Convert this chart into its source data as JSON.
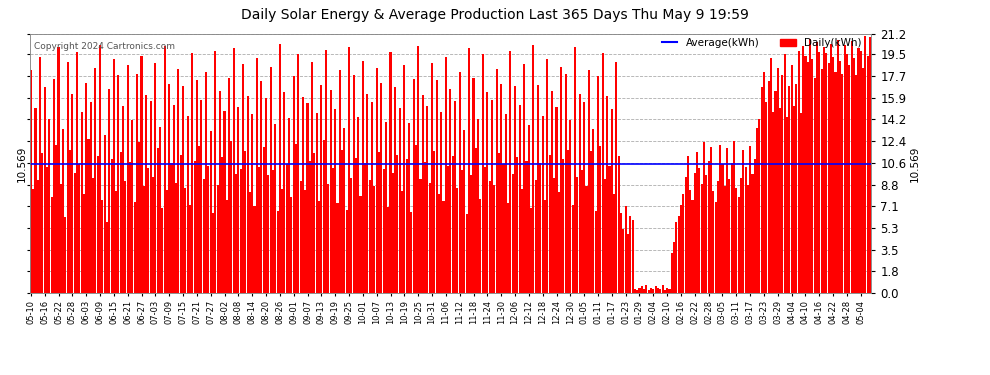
{
  "title": "Daily Solar Energy & Average Production Last 365 Days Thu May 9 19:59",
  "copyright": "Copyright 2024 Cartronics.com",
  "average_value": 10.569,
  "average_label": "10.569",
  "yticks": [
    0.0,
    1.8,
    3.5,
    5.3,
    7.1,
    8.8,
    10.6,
    12.4,
    14.2,
    15.9,
    17.7,
    19.5,
    21.2
  ],
  "ymax": 21.2,
  "ymin": 0.0,
  "bar_color": "#ff0000",
  "average_line_color": "#0000ff",
  "background_color": "#ffffff",
  "grid_color": "#999999",
  "legend_average_color": "#0000ff",
  "legend_daily_color": "#ff0000",
  "x_labels": [
    "05-10",
    "05-16",
    "05-22",
    "05-28",
    "06-03",
    "06-09",
    "06-15",
    "06-21",
    "06-27",
    "07-03",
    "07-09",
    "07-15",
    "07-21",
    "07-27",
    "08-02",
    "08-08",
    "08-14",
    "08-20",
    "08-26",
    "09-01",
    "09-07",
    "09-13",
    "09-19",
    "09-25",
    "10-01",
    "10-07",
    "10-13",
    "10-19",
    "10-25",
    "10-31",
    "11-06",
    "11-12",
    "11-18",
    "11-24",
    "11-30",
    "12-06",
    "12-12",
    "12-18",
    "12-24",
    "12-30",
    "01-05",
    "01-11",
    "01-17",
    "01-23",
    "01-29",
    "02-04",
    "02-10",
    "02-16",
    "02-22",
    "02-28",
    "03-05",
    "03-11",
    "03-17",
    "03-23",
    "03-29",
    "04-04",
    "04-10",
    "04-16",
    "04-22",
    "04-28",
    "05-04"
  ],
  "daily_values": [
    18.2,
    8.5,
    15.1,
    9.2,
    19.3,
    11.4,
    16.8,
    10.3,
    14.2,
    7.8,
    17.5,
    12.1,
    20.1,
    8.9,
    13.4,
    6.2,
    18.9,
    11.7,
    16.3,
    9.8,
    19.7,
    10.5,
    14.8,
    8.1,
    17.2,
    12.6,
    15.6,
    9.4,
    18.4,
    11.2,
    20.3,
    7.6,
    12.9,
    5.8,
    16.7,
    10.9,
    19.1,
    8.3,
    17.8,
    11.5,
    15.3,
    9.1,
    18.6,
    10.7,
    14.1,
    7.4,
    17.9,
    12.3,
    19.4,
    8.7,
    16.2,
    10.2,
    15.7,
    9.5,
    18.8,
    11.8,
    13.6,
    6.9,
    20.2,
    8.4,
    17.1,
    10.6,
    15.4,
    9.0,
    18.3,
    11.3,
    16.9,
    8.6,
    14.5,
    7.2,
    19.6,
    10.8,
    17.4,
    12.0,
    15.8,
    9.3,
    18.1,
    10.4,
    13.2,
    6.5,
    19.8,
    8.8,
    16.5,
    11.1,
    14.9,
    7.6,
    17.6,
    12.4,
    20.0,
    9.7,
    15.2,
    10.1,
    18.7,
    11.6,
    16.1,
    8.2,
    14.6,
    7.1,
    19.2,
    10.3,
    17.3,
    11.9,
    15.9,
    9.6,
    18.5,
    10.0,
    13.8,
    6.7,
    20.4,
    8.5,
    16.4,
    10.5,
    14.3,
    7.8,
    17.7,
    12.2,
    19.5,
    9.1,
    16.0,
    8.4,
    15.5,
    10.8,
    18.9,
    11.4,
    14.7,
    7.5,
    17.0,
    12.5,
    19.9,
    8.9,
    16.6,
    10.2,
    15.0,
    7.3,
    18.2,
    11.7,
    13.5,
    6.8,
    20.1,
    9.4,
    17.8,
    11.0,
    14.4,
    7.9,
    19.0,
    10.6,
    16.3,
    9.2,
    15.6,
    8.7,
    18.4,
    11.5,
    17.2,
    10.1,
    14.0,
    7.0,
    19.7,
    9.8,
    16.8,
    11.3,
    15.1,
    8.3,
    18.6,
    10.9,
    13.9,
    6.6,
    17.5,
    12.1,
    20.2,
    9.3,
    16.2,
    10.7,
    15.3,
    9.0,
    18.8,
    11.6,
    17.4,
    8.1,
    14.8,
    7.5,
    19.3,
    10.4,
    16.7,
    11.2,
    15.7,
    8.6,
    18.1,
    10.0,
    13.3,
    6.4,
    20.0,
    9.6,
    17.6,
    11.8,
    14.2,
    7.7,
    19.5,
    10.3,
    16.4,
    9.1,
    15.8,
    8.8,
    18.3,
    11.4,
    17.1,
    10.5,
    14.6,
    7.3,
    19.8,
    9.7,
    16.9,
    11.1,
    15.4,
    8.5,
    18.7,
    10.8,
    13.7,
    6.9,
    20.3,
    9.2,
    17.0,
    10.6,
    14.5,
    7.6,
    19.1,
    11.3,
    16.5,
    9.4,
    15.2,
    8.2,
    18.5,
    10.9,
    17.9,
    11.7,
    14.1,
    7.2,
    20.1,
    9.5,
    16.3,
    10.0,
    15.6,
    8.7,
    18.2,
    11.6,
    13.4,
    6.7,
    17.7,
    12.0,
    19.6,
    9.3,
    16.1,
    10.4,
    15.0,
    8.1,
    18.9,
    11.2,
    6.5,
    5.2,
    7.1,
    4.8,
    6.3,
    5.9,
    0.3,
    0.2,
    0.4,
    0.5,
    0.3,
    0.6,
    0.2,
    0.4,
    0.3,
    0.5,
    0.4,
    0.3,
    0.6,
    0.2,
    0.4,
    0.3,
    3.2,
    4.1,
    5.8,
    6.3,
    7.2,
    8.1,
    9.5,
    11.2,
    8.4,
    7.6,
    9.8,
    11.5,
    10.2,
    8.9,
    12.3,
    9.6,
    10.8,
    11.9,
    8.3,
    7.4,
    9.1,
    12.1,
    10.5,
    8.7,
    11.8,
    9.3,
    10.6,
    12.4,
    8.6,
    7.8,
    9.4,
    11.7,
    10.3,
    8.8,
    12.0,
    9.7,
    10.9,
    13.5,
    14.2,
    16.8,
    18.1,
    15.6,
    17.3,
    19.2,
    14.8,
    16.5,
    18.4,
    15.1,
    17.8,
    19.5,
    14.4,
    16.9,
    18.6,
    15.3,
    17.1,
    19.8,
    14.7,
    20.2,
    19.4,
    18.9,
    20.8,
    19.1,
    17.6,
    20.5,
    19.7,
    18.3,
    20.1,
    19.6,
    18.8,
    20.4,
    19.3,
    18.1,
    20.7,
    19.0,
    17.9,
    20.3,
    19.5,
    18.6,
    20.6,
    19.2,
    17.8,
    20.0,
    19.8,
    18.4,
    21.0,
    19.4,
    20.9
  ]
}
